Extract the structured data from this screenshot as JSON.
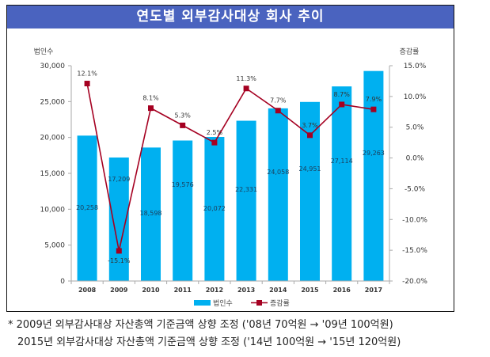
{
  "title": "연도별 외부감사대상 회사 추이",
  "chart_data": {
    "type": "bar+line",
    "title": "연도별 외부감사대상 회사 추이",
    "categories": [
      "2008",
      "2009",
      "2010",
      "2011",
      "2012",
      "2013",
      "2014",
      "2015",
      "2016",
      "2017"
    ],
    "series": [
      {
        "name": "법인수",
        "type": "bar",
        "axis": "left",
        "color": "#00b0f0",
        "values": [
          20258,
          17209,
          18598,
          19576,
          20072,
          22331,
          24058,
          24951,
          27114,
          29263
        ],
        "labels": [
          "20,258",
          "17,209",
          "18,598",
          "19,576",
          "20,072",
          "22,331",
          "24,058",
          "24,951",
          "27,114",
          "29,263"
        ]
      },
      {
        "name": "증감률",
        "type": "line",
        "axis": "right",
        "color": "#a50021",
        "values": [
          12.1,
          -15.1,
          8.1,
          5.3,
          2.5,
          11.3,
          7.7,
          3.7,
          8.7,
          7.9
        ],
        "labels": [
          "12.1%",
          "-15.1%",
          "8.1%",
          "5.3%",
          "2.5%",
          "11.3%",
          "7.7%",
          "3.7%",
          "8.7%",
          "7.9%"
        ]
      }
    ],
    "left_axis": {
      "title": "법인수",
      "range": [
        0,
        30000
      ],
      "ticks": [
        "0",
        "5,000",
        "10,000",
        "15,000",
        "20,000",
        "25,000",
        "30,000"
      ],
      "tick_values": [
        0,
        5000,
        10000,
        15000,
        20000,
        25000,
        30000
      ]
    },
    "right_axis": {
      "title": "증감률",
      "range": [
        -20,
        15
      ],
      "ticks": [
        "-20.0%",
        "-15.0%",
        "-10.0%",
        "-5.0%",
        "0.0%",
        "5.0%",
        "10.0%",
        "15.0%"
      ],
      "tick_values": [
        -20,
        -15,
        -10,
        -5,
        0,
        5,
        10,
        15
      ]
    },
    "legend": {
      "placement": "bottom",
      "entries": [
        "법인수",
        "증감률"
      ]
    },
    "grid": false
  },
  "notes": [
    "* 2009년 외부감사대상 자산총액 기준금액 상향 조정 ('08년 70억원 → '09년 100억원)",
    "2015년 외부감사대상 자산총액 기준금액 상향 조정 ('14년 100억원 → '15년 120억원)"
  ]
}
